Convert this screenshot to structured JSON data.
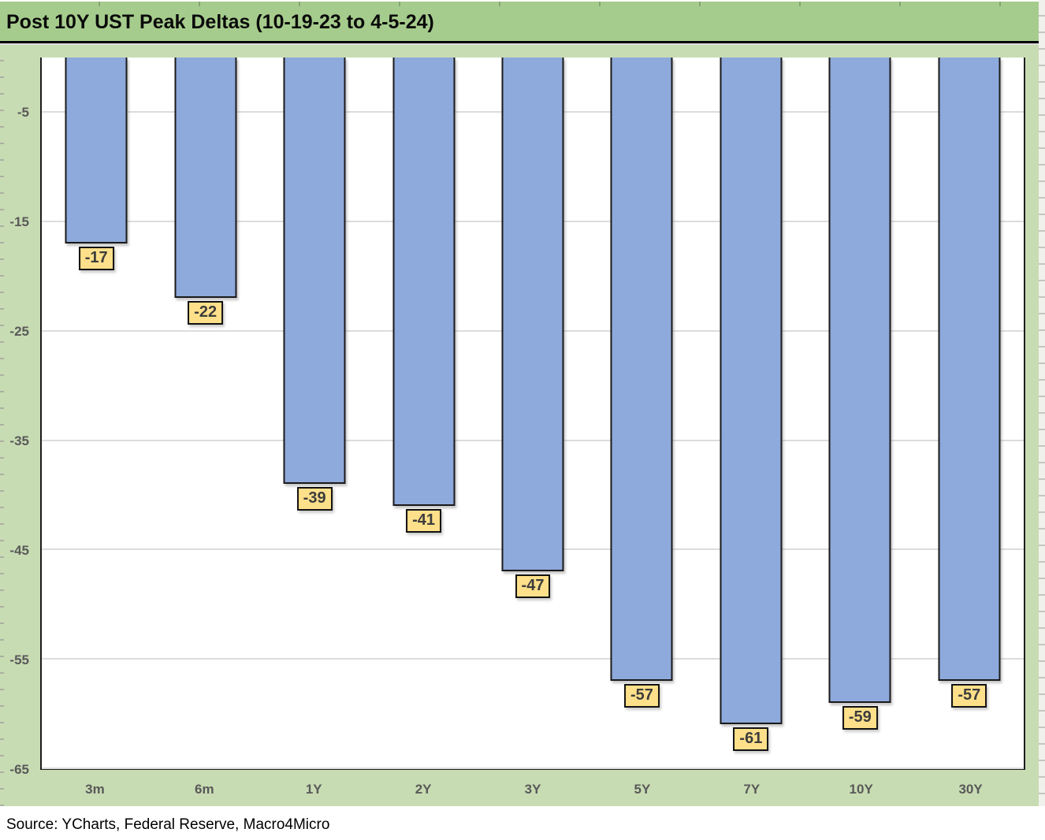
{
  "chart_data": {
    "type": "bar",
    "title": "Post 10Y UST Peak Deltas (10-19-23 to 4-5-24)",
    "categories": [
      "3m",
      "6m",
      "1Y",
      "2Y",
      "3Y",
      "5Y",
      "7Y",
      "10Y",
      "30Y"
    ],
    "values": [
      -17,
      -22,
      -39,
      -41,
      -47,
      -57,
      -61,
      -59,
      -57
    ],
    "data_labels": [
      "-17",
      "-22",
      "-39",
      "-41",
      "-47",
      "-57",
      "-61",
      "-59",
      "-57"
    ],
    "xlabel": "",
    "ylabel": "",
    "ylim": [
      -65,
      0
    ],
    "yticks": [
      -5,
      -15,
      -25,
      -35,
      -45,
      -55,
      -65
    ],
    "grid": true,
    "legend": "none",
    "colors": {
      "bar_fill": "#8EA9DB",
      "bar_border": "#1a1a1a",
      "label_bg": "#FFE08A",
      "label_border": "#111111",
      "title_band_green": "#a6cc8d",
      "chart_bg_green": "#c8dcb3",
      "axis_text_gray": "#595959",
      "gridline_gray": "#dcdcdc"
    }
  },
  "footer": {
    "source": "Source: YCharts, Federal Reserve, Macro4Micro"
  }
}
